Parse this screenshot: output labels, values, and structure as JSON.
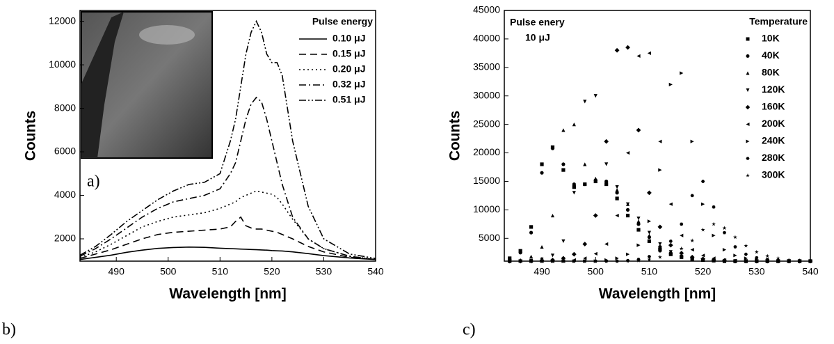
{
  "chart_data": [
    {
      "type": "line",
      "x_label": "Wavelength [nm]",
      "y_label": "Counts",
      "panel_label": "b)",
      "inset_label": "a)",
      "legend_title": "Pulse energy",
      "legend": "upper right",
      "xlim": [
        483,
        540
      ],
      "ylim": [
        975,
        12500
      ],
      "xticks": [
        490,
        500,
        510,
        520,
        530,
        540
      ],
      "yticks": [
        2000,
        4000,
        6000,
        8000,
        10000,
        12000
      ],
      "x": [
        483,
        486,
        489,
        492,
        495,
        498,
        501,
        504,
        507,
        510,
        512,
        513,
        514,
        515,
        516,
        517,
        518,
        519,
        520,
        521,
        522,
        524,
        527,
        530,
        535,
        540
      ],
      "series": [
        {
          "name": "0.10 μJ",
          "color": "#000000",
          "dash": "solid",
          "values": [
            1050,
            1150,
            1250,
            1380,
            1480,
            1560,
            1600,
            1620,
            1610,
            1570,
            1550,
            1540,
            1530,
            1520,
            1510,
            1500,
            1490,
            1480,
            1460,
            1450,
            1440,
            1400,
            1320,
            1230,
            1120,
            1050
          ]
        },
        {
          "name": "0.15 μJ",
          "color": "#000000",
          "dash": "dash",
          "values": [
            1100,
            1300,
            1500,
            1750,
            2000,
            2200,
            2300,
            2350,
            2400,
            2450,
            2550,
            2800,
            3000,
            2600,
            2500,
            2450,
            2450,
            2400,
            2350,
            2300,
            2200,
            2000,
            1650,
            1400,
            1150,
            1050
          ]
        },
        {
          "name": "0.20 μJ",
          "color": "#000000",
          "dash": "dot",
          "values": [
            1150,
            1400,
            1750,
            2150,
            2550,
            2800,
            3000,
            3100,
            3200,
            3400,
            3600,
            3700,
            3900,
            4000,
            4100,
            4200,
            4150,
            4100,
            4050,
            3900,
            3600,
            2900,
            2000,
            1550,
            1200,
            1050
          ]
        },
        {
          "name": "0.32 μJ",
          "color": "#000000",
          "dash": "dashdot",
          "values": [
            1200,
            1550,
            2000,
            2500,
            3000,
            3400,
            3700,
            3850,
            4000,
            4300,
            5000,
            5500,
            6500,
            7500,
            8200,
            8500,
            8300,
            7500,
            6500,
            5500,
            4500,
            3000,
            2000,
            1550,
            1200,
            1050
          ]
        },
        {
          "name": "0.51 μJ",
          "color": "#000000",
          "dash": "dashdotdot",
          "values": [
            1250,
            1650,
            2200,
            2800,
            3300,
            3800,
            4200,
            4500,
            4600,
            5000,
            6500,
            7500,
            9000,
            10500,
            11500,
            12000,
            11500,
            10500,
            10100,
            10100,
            9500,
            6500,
            3500,
            2000,
            1300,
            1100
          ]
        }
      ]
    },
    {
      "type": "scatter",
      "x_label": "Wavelength [nm]",
      "y_label": "Counts",
      "panel_label": "c)",
      "annotations": [
        "Pulse enery",
        "10 μJ"
      ],
      "legend_title": "Temperature",
      "legend": "upper right",
      "xlim": [
        483,
        540
      ],
      "ylim": [
        1000,
        45000
      ],
      "xticks": [
        490,
        500,
        510,
        520,
        530,
        540
      ],
      "yticks": [
        5000,
        10000,
        15000,
        20000,
        25000,
        30000,
        35000,
        40000,
        45000
      ],
      "x": [
        484,
        486,
        488,
        490,
        492,
        494,
        496,
        498,
        500,
        502,
        504,
        506,
        508,
        510,
        512,
        514,
        516,
        518,
        520,
        522,
        524,
        526,
        528,
        530,
        532,
        534,
        536,
        538,
        540
      ],
      "series": [
        {
          "name": "10K",
          "color": "#000000",
          "marker": "square",
          "values": [
            1500,
            2800,
            7000,
            18000,
            21000,
            17000,
            14000,
            14500,
            15000,
            14500,
            12000,
            9000,
            6500,
            4500,
            3000,
            2200,
            1700,
            1400,
            1200,
            1100,
            1000,
            1000,
            1000,
            1000,
            1000,
            1000,
            1000,
            1000,
            1000
          ]
        },
        {
          "name": "40K",
          "color": "#000000",
          "marker": "circle",
          "values": [
            1300,
            2500,
            6000,
            16500,
            20800,
            18000,
            14500,
            14500,
            15200,
            15000,
            13000,
            10000,
            7500,
            5200,
            3500,
            2400,
            1800,
            1500,
            1300,
            1200,
            1100,
            1000,
            1000,
            1000,
            1000,
            1000,
            1000,
            1000,
            1000
          ]
        },
        {
          "name": "80K",
          "color": "#000000",
          "marker": "triangle-up",
          "values": [
            1000,
            1200,
            1800,
            3500,
            9000,
            24000,
            25000,
            18000,
            15500,
            15000,
            13500,
            11000,
            8000,
            5500,
            3600,
            2400,
            1800,
            1400,
            1200,
            1100,
            1000,
            1000,
            1000,
            1000,
            1000,
            1000,
            1000,
            1000,
            1000
          ]
        },
        {
          "name": "120K",
          "color": "#000000",
          "marker": "triangle-down",
          "values": [
            1000,
            1000,
            1100,
            1300,
            2000,
            4500,
            13000,
            29000,
            30000,
            18000,
            14000,
            11000,
            8500,
            6000,
            4000,
            2600,
            1800,
            1400,
            1200,
            1100,
            1000,
            1000,
            1000,
            1000,
            1000,
            1000,
            1000,
            1000,
            1000
          ]
        },
        {
          "name": "160K",
          "color": "#000000",
          "marker": "diamond",
          "values": [
            1000,
            1000,
            1000,
            1100,
            1200,
            1500,
            2200,
            4000,
            9000,
            22000,
            38000,
            38500,
            24000,
            13000,
            7000,
            3800,
            2400,
            1700,
            1400,
            1200,
            1100,
            1000,
            1000,
            1000,
            1000,
            1000,
            1000,
            1000,
            1000
          ]
        },
        {
          "name": "200K",
          "color": "#000000",
          "marker": "triangle-left",
          "values": [
            1000,
            1000,
            1000,
            1000,
            1000,
            1000,
            1200,
            1500,
            2300,
            4000,
            9000,
            20000,
            37000,
            37500,
            22000,
            11000,
            5500,
            3000,
            2000,
            1500,
            1200,
            1100,
            1000,
            1000,
            1000,
            1000,
            1000,
            1000,
            1000
          ]
        },
        {
          "name": "240K",
          "color": "#000000",
          "marker": "triangle-right",
          "values": [
            1000,
            1000,
            1000,
            1000,
            1000,
            1000,
            1000,
            1000,
            1000,
            1200,
            1500,
            2200,
            3800,
            8000,
            17000,
            32000,
            34000,
            22000,
            11000,
            5500,
            3000,
            2000,
            1500,
            1200,
            1100,
            1000,
            1000,
            1000,
            1000
          ]
        },
        {
          "name": "280K",
          "color": "#000000",
          "marker": "hexagon",
          "values": [
            1000,
            1000,
            1000,
            1000,
            1000,
            1000,
            1000,
            1000,
            1000,
            1000,
            1000,
            1100,
            1300,
            1800,
            2800,
            4500,
            7500,
            12500,
            15000,
            10500,
            6000,
            3500,
            2200,
            1600,
            1300,
            1100,
            1000,
            1000,
            1000
          ]
        },
        {
          "name": "300K",
          "color": "#000000",
          "marker": "star",
          "values": [
            1000,
            1000,
            1000,
            1000,
            1000,
            1000,
            1000,
            1000,
            1000,
            1000,
            1000,
            1000,
            1100,
            1300,
            1700,
            2300,
            3200,
            4600,
            6500,
            7500,
            6800,
            5200,
            3700,
            2600,
            1900,
            1500,
            1200,
            1100,
            1000
          ]
        }
      ]
    }
  ]
}
